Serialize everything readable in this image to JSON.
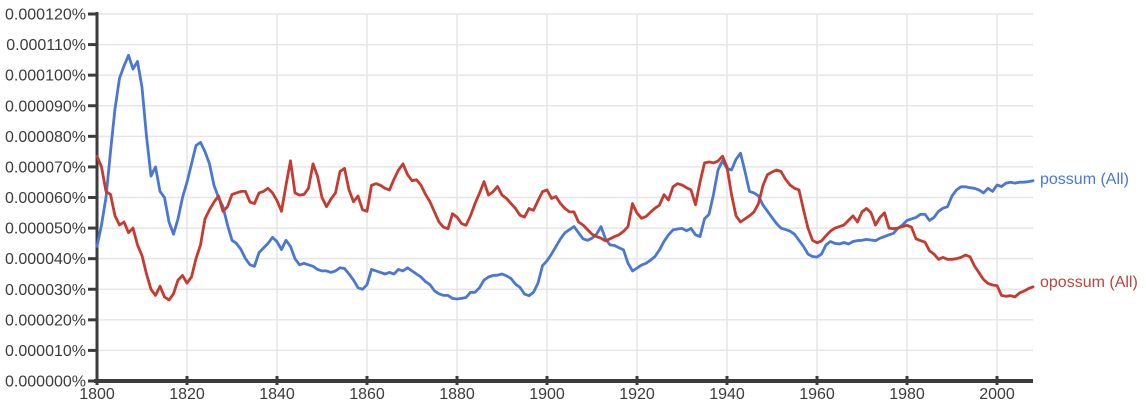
{
  "chart_data": {
    "type": "line",
    "x_start": 1800,
    "x_end": 2008,
    "x_step": 1,
    "x_tick_labels": [
      "1800",
      "1820",
      "1840",
      "1860",
      "1880",
      "1900",
      "1920",
      "1940",
      "1960",
      "1980",
      "2000"
    ],
    "x_tick_years": [
      1800,
      1820,
      1840,
      1860,
      1880,
      1900,
      1920,
      1940,
      1960,
      1980,
      2000
    ],
    "y_tick_labels": [
      "0.000120%",
      "0.000110%",
      "0.000100%",
      "0.000090%",
      "0.000080%",
      "0.000070%",
      "0.000060%",
      "0.000050%",
      "0.000040%",
      "0.000030%",
      "0.000020%",
      "0.000010%",
      "0.000000%"
    ],
    "y_tick_values": [
      120,
      110,
      100,
      90,
      80,
      70,
      60,
      50,
      40,
      30,
      20,
      10,
      0
    ],
    "ylim_percent": [
      0,
      0.00012
    ],
    "values_unit": "1e-6 percent",
    "grid": true,
    "legend_position": "right of line ends",
    "series": [
      {
        "name": "possum (All)",
        "legend_label": "possum (All)",
        "color": "#4a77d4",
        "values": [
          44,
          51,
          60,
          75,
          89,
          99,
          103,
          106.5,
          102,
          104.5,
          96,
          80,
          67,
          70,
          62,
          60,
          52,
          48,
          53,
          60,
          65,
          71,
          77,
          78,
          75,
          71,
          64,
          60,
          57,
          51,
          46,
          45,
          43,
          40,
          38,
          37.5,
          42,
          43.5,
          45,
          47,
          45.5,
          43,
          46,
          44,
          40,
          38,
          38.5,
          38,
          37.5,
          36.5,
          36,
          36,
          35.5,
          36,
          37,
          36.8,
          35,
          33,
          30.5,
          30,
          31.5,
          36.5,
          36,
          35.5,
          35,
          35.5,
          35,
          36.5,
          36,
          37,
          36,
          35,
          34,
          32.5,
          31.5,
          29.5,
          28.5,
          28,
          28,
          27,
          26.8,
          27,
          27.3,
          29,
          29,
          30.5,
          33,
          34,
          34.5,
          34.6,
          35,
          34.4,
          33.5,
          31.7,
          30.6,
          28.4,
          27.9,
          29,
          32,
          37.7,
          39.3,
          41.5,
          44,
          46.5,
          48.5,
          49.5,
          50.5,
          48.5,
          46.5,
          46,
          46.7,
          48,
          50.5,
          46.5,
          44.5,
          44.3,
          43.6,
          42.9,
          38.5,
          36,
          36.9,
          37.9,
          38.5,
          39.5,
          40.7,
          42.9,
          45.6,
          47.8,
          49.4,
          49.7,
          49.9,
          49.1,
          49.9,
          47.8,
          47.2,
          53,
          54.5,
          61,
          69,
          72,
          69.5,
          69,
          72.5,
          74.5,
          68.5,
          62,
          61.5,
          60.5,
          57.5,
          55.5,
          53.5,
          51.5,
          50,
          49.5,
          49,
          48,
          46,
          44,
          41.5,
          40.7,
          40.5,
          41.5,
          44.5,
          45.6,
          45,
          44.8,
          45.3,
          44.8,
          45.6,
          45.9,
          46,
          46.3,
          46.1,
          45.9,
          46.7,
          47.2,
          47.8,
          48.3,
          50,
          51,
          52.5,
          53,
          53.5,
          54.5,
          54.5,
          52.5,
          53.5,
          55.5,
          56.5,
          57,
          60.5,
          62.5,
          63.5,
          63.5,
          63.2,
          63,
          62.5,
          61.5,
          63,
          62,
          64.1,
          63.6,
          64.7,
          65,
          64.7,
          65,
          65,
          65.2,
          65.5
        ]
      },
      {
        "name": "opossum (All)",
        "legend_label": "opossum (All)",
        "color": "#c53b30",
        "legend_text_color": "#b8443a",
        "values": [
          73.5,
          70,
          62,
          61,
          54,
          51,
          52,
          48.5,
          50,
          44.5,
          41,
          35,
          30,
          28,
          31,
          27.5,
          26.5,
          28.5,
          33,
          34.5,
          32,
          34,
          40,
          44.5,
          53,
          56,
          58.5,
          60.5,
          55.5,
          57,
          61,
          61.5,
          62,
          62,
          58.5,
          58,
          61.5,
          62,
          63,
          61.5,
          59,
          55.5,
          64,
          72,
          61.5,
          60.8,
          61,
          63,
          71,
          67,
          60,
          57,
          59.5,
          61.5,
          68.5,
          69.5,
          62.5,
          58.6,
          60.5,
          56,
          55.5,
          64,
          64.5,
          64,
          63,
          62.5,
          66,
          69,
          71,
          67.5,
          65.5,
          65.8,
          64,
          61,
          58.6,
          55.3,
          52,
          50.3,
          49.8,
          54.7,
          53.6,
          51.5,
          50.9,
          54,
          58,
          61.4,
          65.2,
          60.8,
          61.9,
          63.6,
          60.8,
          59.7,
          58,
          56.4,
          54.2,
          53.6,
          56.4,
          55.8,
          59,
          61.9,
          62.5,
          59.7,
          60.3,
          58,
          56.4,
          55.3,
          55.3,
          52,
          51,
          49.5,
          48,
          47.2,
          46.7,
          45.8,
          46.5,
          47.2,
          47.8,
          48.9,
          50.5,
          58,
          54.9,
          53.2,
          53.8,
          55.2,
          56.5,
          57.5,
          60.9,
          59.2,
          63.5,
          64.5,
          64.1,
          63.2,
          62.5,
          57.6,
          65,
          71.3,
          71.6,
          71.3,
          71.9,
          73.5,
          70,
          61,
          54,
          52,
          53,
          54,
          55.3,
          58,
          64,
          67.5,
          68.3,
          69,
          68.5,
          66,
          64.1,
          63,
          62.5,
          56,
          50,
          46,
          45.2,
          45.8,
          47.5,
          49,
          50,
          50.5,
          51,
          52.5,
          54,
          52,
          55.3,
          56.4,
          55,
          51,
          53.5,
          55,
          50,
          49.8,
          50,
          50.5,
          50.9,
          50.3,
          46.5,
          45.9,
          45.4,
          42.6,
          41.5,
          39.8,
          40.4,
          39.8,
          39.8,
          40,
          40.4,
          41.2,
          40.6,
          37.6,
          35.4,
          33.2,
          31.9,
          31.4,
          31.2,
          28,
          27.7,
          27.9,
          27.5,
          28.8,
          29.4,
          30.2,
          30.8
        ]
      }
    ],
    "colors": {
      "axis": "#3c3c3c",
      "grid": "#e6e6e6",
      "tick_label": "#3b3b3b",
      "background": "#ffffff"
    }
  }
}
